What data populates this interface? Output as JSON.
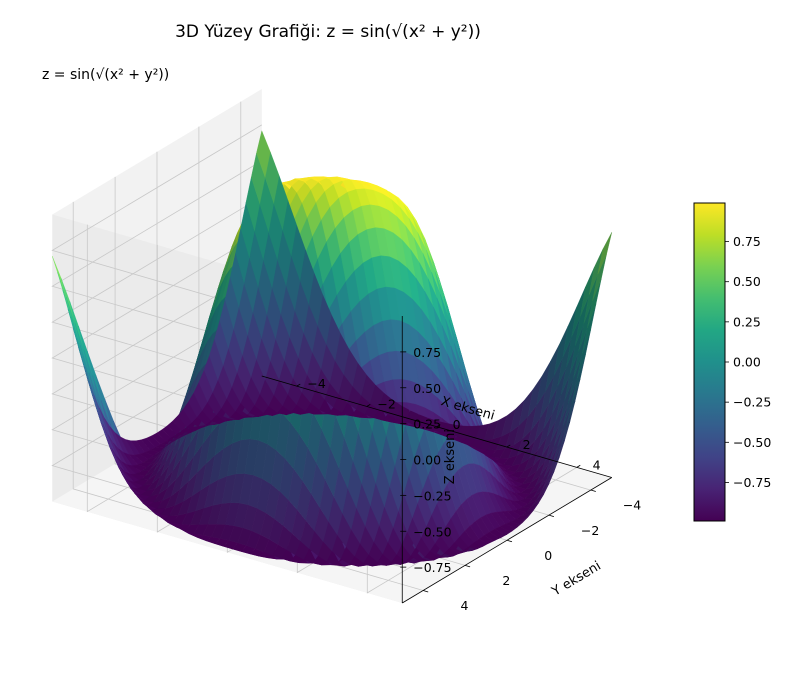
{
  "chart_data": {
    "type": "surface",
    "title": "3D Yüzey Grafiği: z = sin(√(x² + y²))",
    "annotation": "z = sin(√(x² + y²))",
    "function": "z = sin(sqrt(x^2 + y^2))",
    "xlabel": "X ekseni",
    "ylabel": "Y ekseni",
    "zlabel": "Z ekseni",
    "xlim": [
      -5,
      5
    ],
    "ylim": [
      -5,
      5
    ],
    "zlim": [
      -1,
      1
    ],
    "x_ticks": [
      "−4",
      "−2",
      "0",
      "2",
      "4"
    ],
    "y_ticks": [
      "−4",
      "−2",
      "0",
      "2",
      "4"
    ],
    "z_ticks": [
      "0.75",
      "0.50",
      "0.25",
      "0.00",
      "−0.25",
      "−0.50",
      "−0.75"
    ],
    "colormap": "viridis",
    "colorbar_ticks": [
      "0.75",
      "0.50",
      "0.25",
      "0.00",
      "−0.25",
      "−0.50",
      "−0.75"
    ],
    "colorbar_range": [
      -0.99,
      0.99
    ],
    "grid": true
  }
}
